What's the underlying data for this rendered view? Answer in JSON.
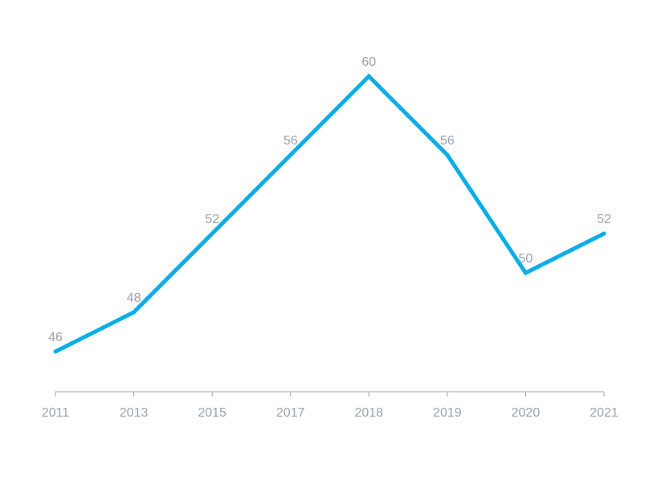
{
  "chart_data": {
    "type": "line",
    "title": "",
    "xlabel": "",
    "ylabel": "",
    "categories": [
      "2011",
      "2013",
      "2015",
      "2017",
      "2018",
      "2019",
      "2020",
      "2021"
    ],
    "series": [
      {
        "values": [
          46,
          48,
          52,
          56,
          60,
          56,
          50,
          52
        ],
        "color": "#0aaee8"
      }
    ],
    "ylim": [
      44,
      62
    ],
    "grid": false,
    "legend": "none",
    "data_labels": true
  },
  "colors": {
    "line": "#0aaee8",
    "text": "#9aa3ab",
    "axis": "#9aa3ab"
  }
}
